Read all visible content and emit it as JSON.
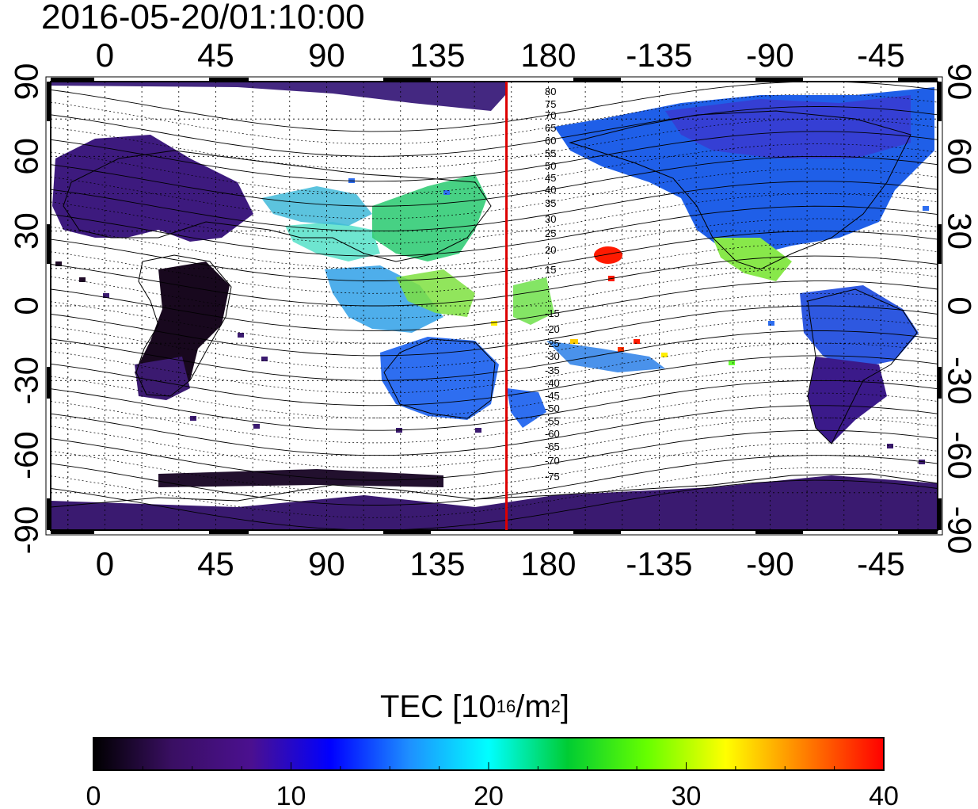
{
  "map": {
    "timestamp": "2016-05-20/01:10:00",
    "projection": "equirectangular",
    "longitude_ticks_top": [
      "0",
      "45",
      "90",
      "135",
      "180",
      "-135",
      "-90",
      "-45"
    ],
    "longitude_ticks_bottom": [
      "0",
      "45",
      "90",
      "135",
      "180",
      "-135",
      "-90",
      "-45"
    ],
    "latitude_ticks_left": [
      "90",
      "60",
      "30",
      "0",
      "-30",
      "-60",
      "-90"
    ],
    "latitude_ticks_right": [
      "90",
      "60",
      "30",
      "0",
      "-30",
      "-60",
      "-90"
    ],
    "meridian_marker": {
      "longitude": 163,
      "color": "#dd0000"
    },
    "contour_labels_north": [
      "80",
      "75",
      "70",
      "65",
      "60",
      "55",
      "50",
      "45",
      "40",
      "35",
      "30",
      "25",
      "20",
      "15"
    ],
    "contour_labels_south": [
      "-15",
      "-20",
      "-25",
      "-30",
      "-35",
      "-40",
      "-45",
      "-50",
      "-55",
      "-60",
      "-65",
      "-70",
      "-75"
    ]
  },
  "colorbar": {
    "title_text": "TEC  [10",
    "title_exp": "16",
    "title_unit": "/m",
    "title_unit_exp": "2",
    "title_close": "]",
    "min": 0,
    "max": 40,
    "tick_labels": [
      "0",
      "10",
      "20",
      "30",
      "40"
    ],
    "colors": [
      "#000000",
      "#3a0f63",
      "#4b1090",
      "#0000ff",
      "#1e90ff",
      "#00ffff",
      "#00cc33",
      "#66ff00",
      "#ffff00",
      "#ff7f00",
      "#ff0000"
    ]
  },
  "tec_regions": [
    {
      "name": "north-america",
      "color": "#1f5fe8"
    },
    {
      "name": "central-america",
      "color": "#88e84a"
    },
    {
      "name": "south-america",
      "color": "#3b1a8a"
    },
    {
      "name": "africa",
      "color": "#18081e"
    },
    {
      "name": "europe-asia",
      "color": "#3a1c7a"
    },
    {
      "name": "east-asia",
      "color": "#33cc77"
    },
    {
      "name": "australia",
      "color": "#2e6ef0"
    },
    {
      "name": "hawaii",
      "color": "#ff1a00"
    },
    {
      "name": "antarctica",
      "color": "#3a1a70"
    }
  ]
}
